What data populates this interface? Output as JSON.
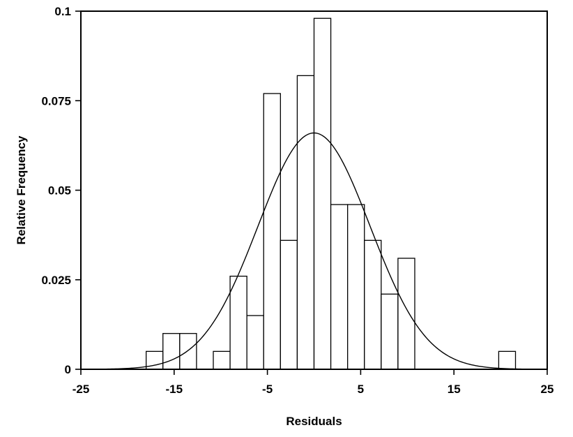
{
  "chart_data": {
    "type": "bar",
    "subtype": "histogram-with-normal-curve",
    "xlabel": "Residuals",
    "ylabel": "Relative Frequency",
    "xlim": [
      -25,
      25
    ],
    "ylim": [
      0,
      0.1
    ],
    "xticks": [
      -25,
      -15,
      -5,
      5,
      15,
      25
    ],
    "xtick_labels": [
      "-25",
      "-15",
      "-5",
      "5",
      "15",
      "25"
    ],
    "yticks": [
      0,
      0.025,
      0.05,
      0.075,
      0.1
    ],
    "ytick_labels": [
      "0",
      "0.025",
      "0.05",
      "0.075",
      "0.1"
    ],
    "bin_width": 1.8,
    "bins": [
      {
        "x0": -18.0,
        "x1": -16.2,
        "value": 0.005
      },
      {
        "x0": -16.2,
        "x1": -14.4,
        "value": 0.01
      },
      {
        "x0": -14.4,
        "x1": -12.6,
        "value": 0.01
      },
      {
        "x0": -10.8,
        "x1": -9.0,
        "value": 0.005
      },
      {
        "x0": -9.0,
        "x1": -7.2,
        "value": 0.026
      },
      {
        "x0": -7.2,
        "x1": -5.4,
        "value": 0.015
      },
      {
        "x0": -5.4,
        "x1": -3.6,
        "value": 0.077
      },
      {
        "x0": -3.6,
        "x1": -1.8,
        "value": 0.036
      },
      {
        "x0": -1.8,
        "x1": 0.0,
        "value": 0.082
      },
      {
        "x0": 0.0,
        "x1": 1.8,
        "value": 0.098
      },
      {
        "x0": 1.8,
        "x1": 3.6,
        "value": 0.046
      },
      {
        "x0": 3.6,
        "x1": 5.4,
        "value": 0.046
      },
      {
        "x0": 5.4,
        "x1": 7.2,
        "value": 0.036
      },
      {
        "x0": 7.2,
        "x1": 9.0,
        "value": 0.021
      },
      {
        "x0": 9.0,
        "x1": 10.8,
        "value": 0.031
      },
      {
        "x0": 19.8,
        "x1": 21.6,
        "value": 0.005
      }
    ],
    "curve": {
      "type": "normal",
      "mean": 0,
      "sd": 6.0,
      "peak": 0.066
    },
    "colors": {
      "bar_fill": "#ffffff",
      "bar_stroke": "#000000",
      "curve": "#000000",
      "axis": "#000000"
    },
    "grid": false
  }
}
